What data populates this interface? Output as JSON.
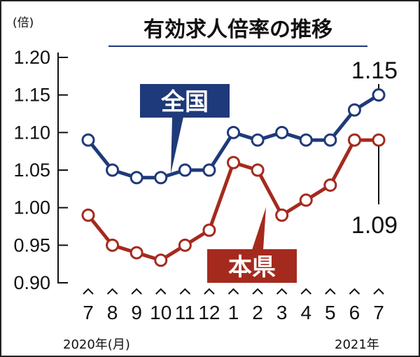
{
  "chart_data": {
    "type": "line",
    "title": "有効求人倍率の推移",
    "unit": "(倍)",
    "x": [
      "7",
      "8",
      "9",
      "10",
      "11",
      "12",
      "1",
      "2",
      "3",
      "4",
      "5",
      "6",
      "7"
    ],
    "x_year_start": "2020年(月)",
    "x_year_end": "2021年",
    "ylim": [
      0.9,
      1.2
    ],
    "y_ticks": [
      "1.20",
      "1.15",
      "1.10",
      "1.05",
      "1.00",
      "0.95",
      "0.90"
    ],
    "series": [
      {
        "name": "全国",
        "color": "#1f3a7a",
        "values": [
          1.09,
          1.05,
          1.04,
          1.04,
          1.05,
          1.05,
          1.1,
          1.09,
          1.1,
          1.09,
          1.09,
          1.13,
          1.15
        ],
        "end_label": "1.15"
      },
      {
        "name": "本県",
        "color": "#a52a1e",
        "values": [
          0.99,
          0.95,
          0.94,
          0.93,
          0.95,
          0.97,
          1.06,
          1.05,
          0.99,
          1.01,
          1.03,
          1.09,
          1.09
        ],
        "end_label": "1.09"
      }
    ],
    "grid": false
  }
}
